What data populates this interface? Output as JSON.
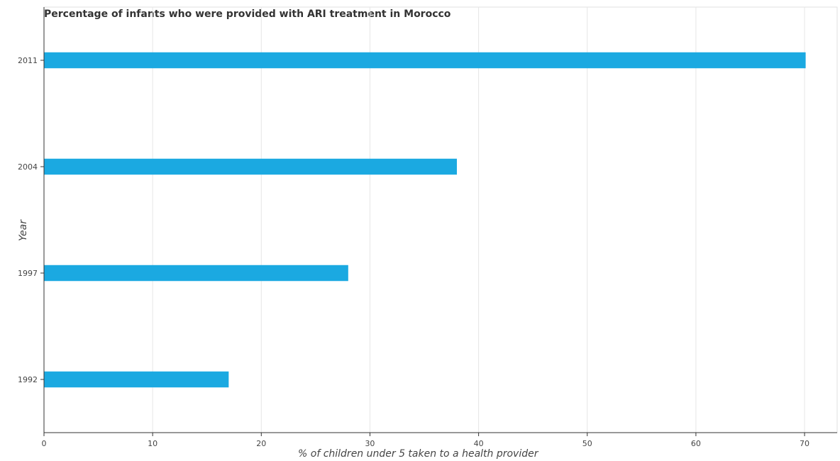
{
  "chart_data": {
    "type": "bar",
    "orientation": "horizontal",
    "title": "Percentage of infants who were provided with ARI treatment in Morocco",
    "xlabel": "% of children under 5 taken to a health provider",
    "ylabel": "Year",
    "categories": [
      "1992",
      "1997",
      "2004",
      "2011"
    ],
    "values": [
      17,
      28,
      38,
      70.1
    ],
    "xlim": [
      0,
      73
    ],
    "xticks": [
      0,
      10,
      20,
      30,
      40,
      50,
      60,
      70
    ],
    "grid": true,
    "bar_color": "#1ba9e1"
  }
}
